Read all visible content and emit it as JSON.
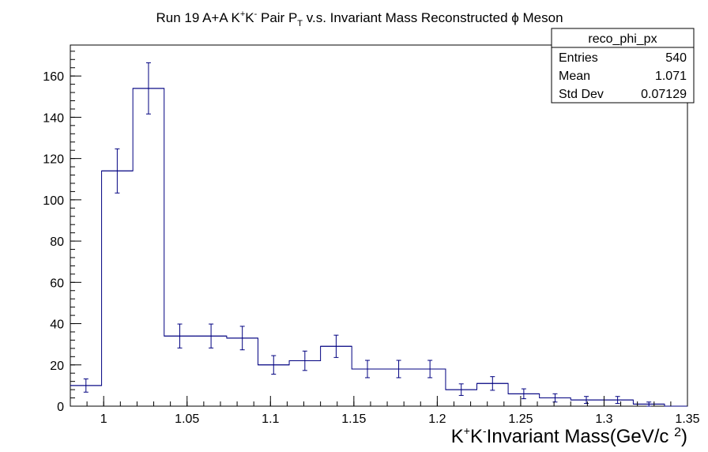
{
  "chart_data": {
    "type": "bar",
    "title": {
      "prefix": "Run 19 A+A K",
      "sup1": "+",
      "mid1": "K",
      "sup2": "-",
      "mid2": " Pair P",
      "sub": "T",
      "suffix": " v.s. Invariant Mass Reconstructed ϕ Meson"
    },
    "xlabel": {
      "prefix": "K",
      "sup1": "+",
      "mid": "K",
      "sup2": "-",
      "suffix": "Invariant Mass(GeV/c ",
      "sup3": "2",
      "close": ")"
    },
    "ylabel": "",
    "xlim": [
      0.98,
      1.35
    ],
    "ylim": [
      0,
      175
    ],
    "x_ticks": [
      1,
      1.05,
      1.1,
      1.15,
      1.2,
      1.25,
      1.3,
      1.35
    ],
    "x_tick_labels": [
      "1",
      "1.05",
      "1.1",
      "1.15",
      "1.2",
      "1.25",
      "1.3",
      "1.35"
    ],
    "y_ticks": [
      0,
      20,
      40,
      60,
      80,
      100,
      120,
      140,
      160
    ],
    "y_tick_labels": [
      "0",
      "20",
      "40",
      "60",
      "80",
      "100",
      "120",
      "140",
      "160"
    ],
    "grid": false,
    "bin_edges": [
      0.98,
      0.99875,
      1.0175,
      1.03625,
      1.055,
      1.07375,
      1.0925,
      1.11125,
      1.13,
      1.14875,
      1.1675,
      1.18625,
      1.205,
      1.22375,
      1.2425,
      1.26125,
      1.28,
      1.29875,
      1.3175,
      1.33625,
      1.355
    ],
    "values": [
      10,
      114,
      154,
      34,
      34,
      33,
      20,
      22,
      29,
      18,
      18,
      18,
      8,
      11,
      6,
      4,
      3,
      3,
      1,
      0
    ],
    "errors": [
      3.2,
      10.7,
      12.4,
      5.8,
      5.8,
      5.7,
      4.5,
      4.7,
      5.4,
      4.2,
      4.2,
      4.2,
      2.8,
      3.3,
      2.4,
      2.0,
      1.7,
      1.7,
      1.0,
      0
    ],
    "line_color": "#000080",
    "stats_box": {
      "name": "reco_phi_px",
      "rows": [
        {
          "label": "Entries",
          "value": "540"
        },
        {
          "label": "Mean",
          "value": "1.071"
        },
        {
          "label": "Std Dev",
          "value": "0.07129"
        }
      ]
    }
  }
}
